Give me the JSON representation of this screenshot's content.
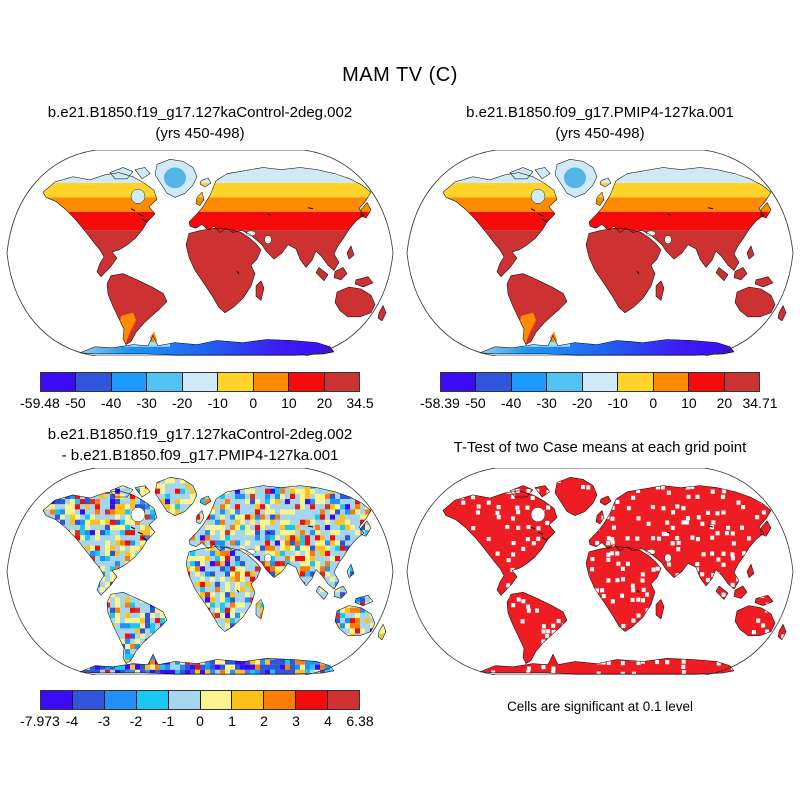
{
  "figure": {
    "title": "MAM TV (C)"
  },
  "panels": {
    "top_left": {
      "title_line1": "b.e21.B1850.f19_g17.127kaControl-2deg.002",
      "title_line2": "(yrs 450-498)"
    },
    "top_right": {
      "title_line1": "b.e21.B1850.f09_g17.PMIP4-127ka.001",
      "title_line2": "(yrs 450-498)"
    },
    "bottom_left": {
      "title_line1": "b.e21.B1850.f19_g17.127kaControl-2deg.002",
      "title_line2": "- b.e21.B1850.f09_g17.PMIP4-127ka.001"
    },
    "bottom_right": {
      "title": "T-Test of two Case means at each grid point",
      "caption": "Cells are significant at 0.1 level"
    }
  },
  "colorbars": {
    "top_left": {
      "labels": [
        "-59.48",
        "-50",
        "-40",
        "-30",
        "-20",
        "-10",
        "0",
        "10",
        "20",
        "34.5"
      ],
      "colors": [
        "#3b0cf2",
        "#2f55dd",
        "#1e9aff",
        "#52c3f0",
        "#cfe9f7",
        "#ffd32a",
        "#ff8c00",
        "#f40b0b",
        "#cc3232"
      ]
    },
    "top_right": {
      "labels": [
        "-58.39",
        "-50",
        "-40",
        "-30",
        "-20",
        "-10",
        "0",
        "10",
        "20",
        "34.71"
      ],
      "colors": [
        "#3b0cf2",
        "#2f55dd",
        "#1e9aff",
        "#52c3f0",
        "#cfe9f7",
        "#ffd32a",
        "#ff8c00",
        "#f40b0b",
        "#cc3232"
      ]
    },
    "bottom_left": {
      "labels": [
        "-7.973",
        "-4",
        "-3",
        "-2",
        "-1",
        "0",
        "1",
        "2",
        "3",
        "4",
        "6.38"
      ],
      "colors": [
        "#3b0cf2",
        "#2f55dd",
        "#2090fa",
        "#18c8f0",
        "#a6d5ee",
        "#faf48f",
        "#ffc018",
        "#fb7d07",
        "#f40b0b",
        "#d13030"
      ]
    }
  },
  "ttest": {
    "significant_color": "#ee1c23"
  },
  "chart_data": [
    {
      "type": "heatmap",
      "subtype": "global-map",
      "projection": "Robinson",
      "title": "b.e21.B1850.f19_g17.127kaControl-2deg.002 (yrs 450-498)",
      "variable": "MAM TV (C)",
      "levels": [
        -59.48,
        -50,
        -40,
        -30,
        -20,
        -10,
        0,
        10,
        20,
        34.5
      ],
      "min": -59.48,
      "max": 34.5,
      "palette": [
        "#3b0cf2",
        "#2f55dd",
        "#1e9aff",
        "#52c3f0",
        "#cfe9f7",
        "#ffd32a",
        "#ff8c00",
        "#f40b0b",
        "#cc3232"
      ]
    },
    {
      "type": "heatmap",
      "subtype": "global-map",
      "projection": "Robinson",
      "title": "b.e21.B1850.f09_g17.PMIP4-127ka.001 (yrs 450-498)",
      "variable": "MAM TV (C)",
      "levels": [
        -58.39,
        -50,
        -40,
        -30,
        -20,
        -10,
        0,
        10,
        20,
        34.71
      ],
      "min": -58.39,
      "max": 34.71,
      "palette": [
        "#3b0cf2",
        "#2f55dd",
        "#1e9aff",
        "#52c3f0",
        "#cfe9f7",
        "#ffd32a",
        "#ff8c00",
        "#f40b0b",
        "#cc3232"
      ]
    },
    {
      "type": "heatmap",
      "subtype": "global-map-difference",
      "projection": "Robinson",
      "title": "b.e21.B1850.f19_g17.127kaControl-2deg.002 - b.e21.B1850.f09_g17.PMIP4-127ka.001",
      "variable": "MAM TV (C)",
      "levels": [
        -7.973,
        -4,
        -3,
        -2,
        -1,
        0,
        1,
        2,
        3,
        4,
        6.38
      ],
      "min": -7.973,
      "max": 6.38,
      "palette": [
        "#3b0cf2",
        "#2f55dd",
        "#2090fa",
        "#18c8f0",
        "#a6d5ee",
        "#faf48f",
        "#ffc018",
        "#fb7d07",
        "#f40b0b",
        "#d13030"
      ]
    },
    {
      "type": "heatmap",
      "subtype": "significance-mask",
      "projection": "Robinson",
      "title": "T-Test of two Case means at each grid point",
      "note": "Cells are significant at 0.1 level",
      "significance_level": 0.1,
      "significant_color": "#ee1c23"
    }
  ]
}
